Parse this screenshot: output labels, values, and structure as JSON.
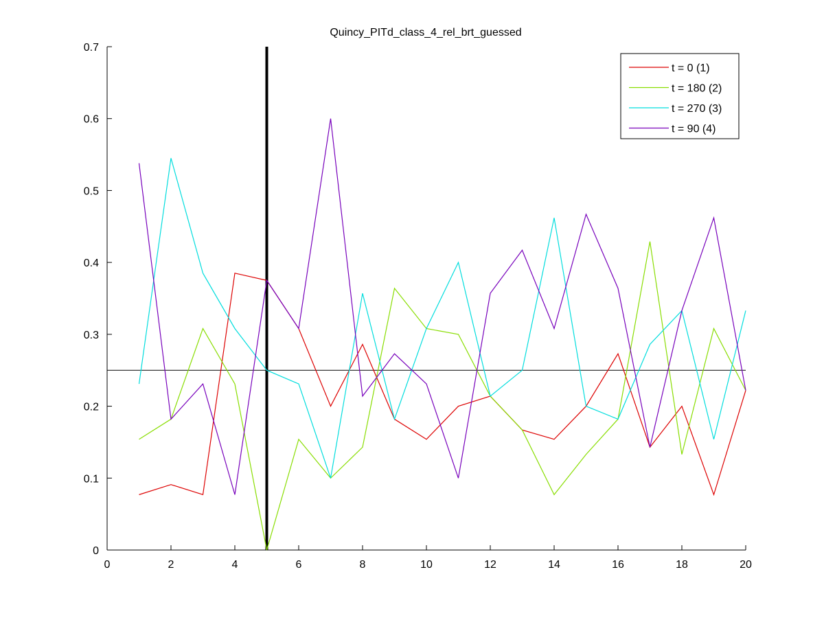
{
  "chart_data": {
    "type": "line",
    "title": "Quincy_PITd_class_4_rel_brt_guessed",
    "xlabel": "",
    "ylabel": "",
    "xlim": [
      0,
      20
    ],
    "ylim": [
      0,
      0.7
    ],
    "x_ticks": [
      0,
      2,
      4,
      6,
      8,
      10,
      12,
      14,
      16,
      18,
      20
    ],
    "y_ticks": [
      0,
      0.1,
      0.2,
      0.3,
      0.4,
      0.5,
      0.6,
      0.7
    ],
    "grid": false,
    "legend_position": "top-right",
    "x": [
      1,
      2,
      3,
      4,
      5,
      6,
      7,
      8,
      9,
      10,
      11,
      12,
      13,
      14,
      15,
      16,
      17,
      18,
      19,
      20
    ],
    "series": [
      {
        "name": "t = 0 (1)",
        "color": "#dd0000",
        "values": [
          0.077,
          0.091,
          0.077,
          0.385,
          0.375,
          0.308,
          0.2,
          0.286,
          0.182,
          0.154,
          0.2,
          0.214,
          0.167,
          0.154,
          0.2,
          0.273,
          0.143,
          0.2,
          0.077,
          0.222
        ]
      },
      {
        "name": "t = 180 (2)",
        "color": "#88dd00",
        "values": [
          0.154,
          0.182,
          0.308,
          0.231,
          0.0,
          0.154,
          0.1,
          0.143,
          0.364,
          0.308,
          0.3,
          0.214,
          0.167,
          0.077,
          0.133,
          0.182,
          0.429,
          0.133,
          0.308,
          0.222
        ]
      },
      {
        "name": "t = 270 (3)",
        "color": "#00dddd",
        "values": [
          0.231,
          0.545,
          0.385,
          0.308,
          0.25,
          0.231,
          0.1,
          0.357,
          0.182,
          0.308,
          0.4,
          0.214,
          0.25,
          0.462,
          0.2,
          0.182,
          0.286,
          0.333,
          0.154,
          0.333
        ]
      },
      {
        "name": "t = 90 (4)",
        "color": "#7700bb",
        "values": [
          0.538,
          0.182,
          0.231,
          0.077,
          0.375,
          0.308,
          0.6,
          0.214,
          0.273,
          0.231,
          0.1,
          0.357,
          0.417,
          0.308,
          0.467,
          0.364,
          0.143,
          0.333,
          0.462,
          0.222
        ]
      }
    ],
    "reference_lines": {
      "horizontal_y": 0.25,
      "vertical_x": 5
    }
  }
}
